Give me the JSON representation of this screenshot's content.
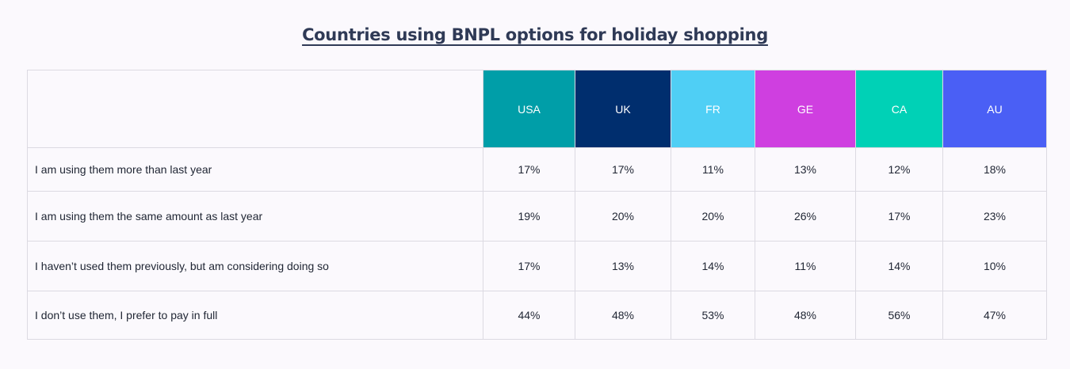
{
  "chart_data": {
    "type": "table",
    "title": "Countries using BNPL options for holiday shopping",
    "columns": [
      {
        "label": "USA",
        "color": "#009ea8"
      },
      {
        "label": "UK",
        "color": "#002e6e"
      },
      {
        "label": "FR",
        "color": "#4fcff5"
      },
      {
        "label": "GE",
        "color": "#cf3fe0"
      },
      {
        "label": "CA",
        "color": "#00d1b6"
      },
      {
        "label": "AU",
        "color": "#4a5ff5"
      }
    ],
    "rows": [
      {
        "label": "I am using them more than last year",
        "values": [
          "17%",
          "17%",
          "11%",
          "13%",
          "12%",
          "18%"
        ]
      },
      {
        "label": "I am using them the same amount as last year",
        "values": [
          "19%",
          "20%",
          "20%",
          "26%",
          "17%",
          "23%"
        ]
      },
      {
        "label": "I haven’t used them previously, but am considering doing so",
        "values": [
          "17%",
          "13%",
          "14%",
          "11%",
          "14%",
          "10%"
        ]
      },
      {
        "label": "I don’t use them, I prefer to pay in full",
        "values": [
          "44%",
          "48%",
          "53%",
          "48%",
          "56%",
          "47%"
        ]
      }
    ]
  }
}
